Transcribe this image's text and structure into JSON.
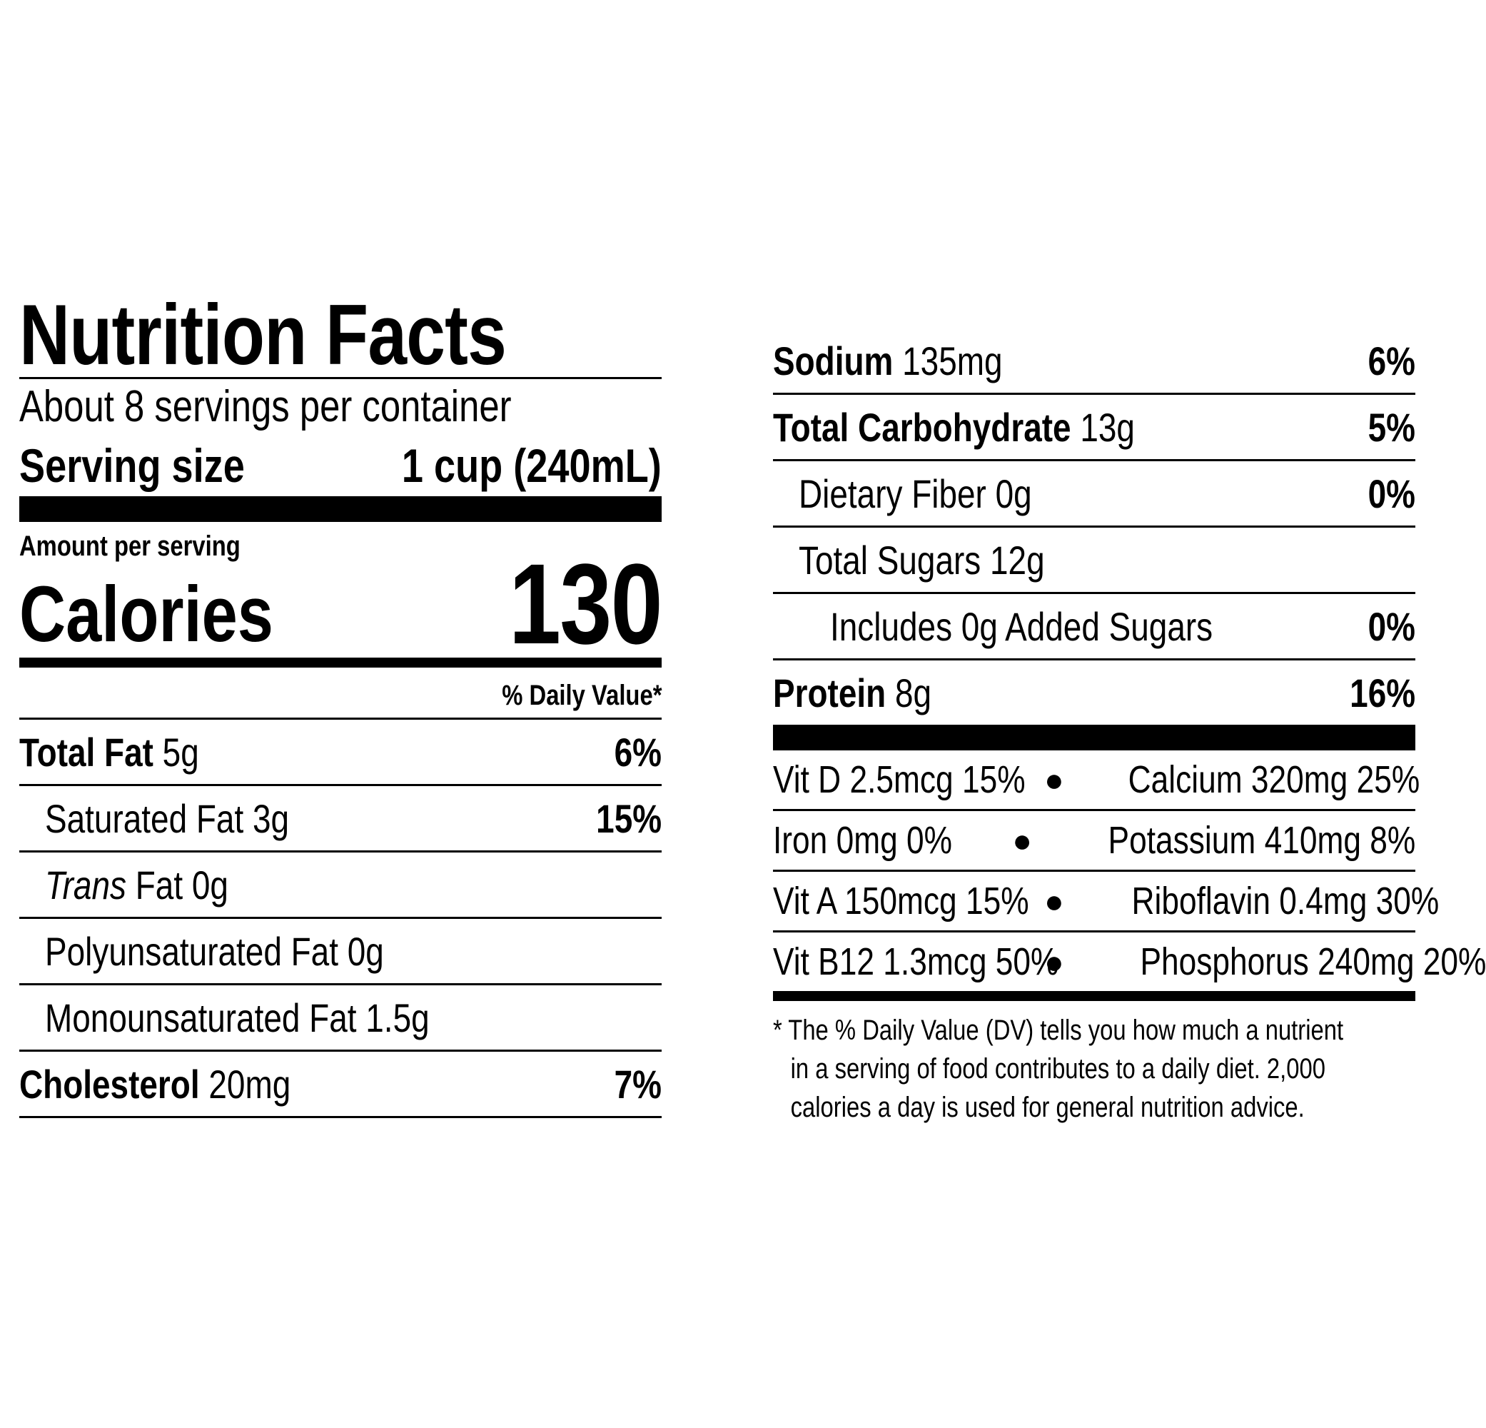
{
  "label": {
    "title": "Nutrition Facts",
    "servings_per_container": "About 8 servings per container",
    "serving_size_label": "Serving size",
    "serving_size_value": "1 cup (240mL)",
    "amount_per_serving": "Amount per serving",
    "calories_label": "Calories",
    "calories_value": "130",
    "daily_value_header": "% Daily Value*"
  },
  "nutrients_left": [
    {
      "name": "Total Fat",
      "amount": "5g",
      "dv": "6%"
    },
    {
      "name": "Saturated Fat",
      "amount": "3g",
      "dv": "15%"
    },
    {
      "name": "Trans",
      "name_rest": "Fat",
      "amount": "0g",
      "dv": ""
    },
    {
      "name": "Polyunsaturated Fat",
      "amount": "0g",
      "dv": ""
    },
    {
      "name": "Monounsaturated Fat",
      "amount": "1.5g",
      "dv": ""
    },
    {
      "name": "Cholesterol",
      "amount": "20mg",
      "dv": "7%"
    }
  ],
  "nutrients_right": [
    {
      "name": "Sodium",
      "amount": "135mg",
      "dv": "6%"
    },
    {
      "name": "Total Carbohydrate",
      "amount": "13g",
      "dv": "5%"
    },
    {
      "name": "Dietary Fiber",
      "amount": "0g",
      "dv": "0%"
    },
    {
      "name": "Total Sugars",
      "amount": "12g",
      "dv": ""
    },
    {
      "name": "Includes 0g Added Sugars",
      "amount": "",
      "dv": "0%"
    },
    {
      "name": "Protein",
      "amount": "8g",
      "dv": "16%"
    }
  ],
  "vitamins": [
    {
      "left": "Vit D 2.5mcg 15%",
      "right": "Calcium 320mg 25%"
    },
    {
      "left": "Iron 0mg 0%",
      "right": "Potassium 410mg 8%"
    },
    {
      "left": "Vit A 150mcg 15%",
      "right": "Riboflavin 0.4mg 30%"
    },
    {
      "left": "Vit B12 1.3mcg 50%",
      "right": "Phosphorus 240mg 20%"
    }
  ],
  "bullet": "●",
  "footnote": {
    "line1": "* The % Daily Value (DV) tells you how much a nutrient",
    "line2": "in a serving of food contributes to a daily diet. 2,000",
    "line3": "calories a day is used for general nutrition advice."
  }
}
